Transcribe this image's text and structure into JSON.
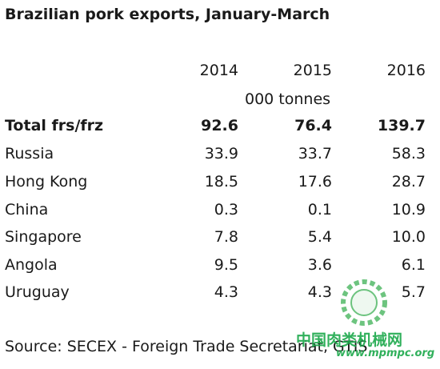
{
  "header": {
    "title": "Brazilian pork exports, January-March"
  },
  "table": {
    "columns": [
      "2014",
      "2015",
      "2016"
    ],
    "unit": "000 tonnes",
    "rows": [
      [
        "Total frs/frz",
        "92.6",
        "76.4",
        "139.7"
      ],
      [
        "Russia",
        "33.9",
        "33.7",
        "58.3"
      ],
      [
        "Hong Kong",
        "18.5",
        "17.6",
        "28.7"
      ],
      [
        "China",
        "0.3",
        "0.1",
        "10.9"
      ],
      [
        "Singapore",
        "7.8",
        "5.4",
        "10.0"
      ],
      [
        "Angola",
        "9.5",
        "3.6",
        "6.1"
      ],
      [
        "Uruguay",
        "4.3",
        "4.3",
        "5.7"
      ]
    ]
  },
  "footer": {
    "source": "Source: SECEX - Foreign Trade Secretariat, GTIS"
  },
  "watermark": {
    "name": "中国肉类机械网",
    "url": "www.mpmpc.org"
  }
}
